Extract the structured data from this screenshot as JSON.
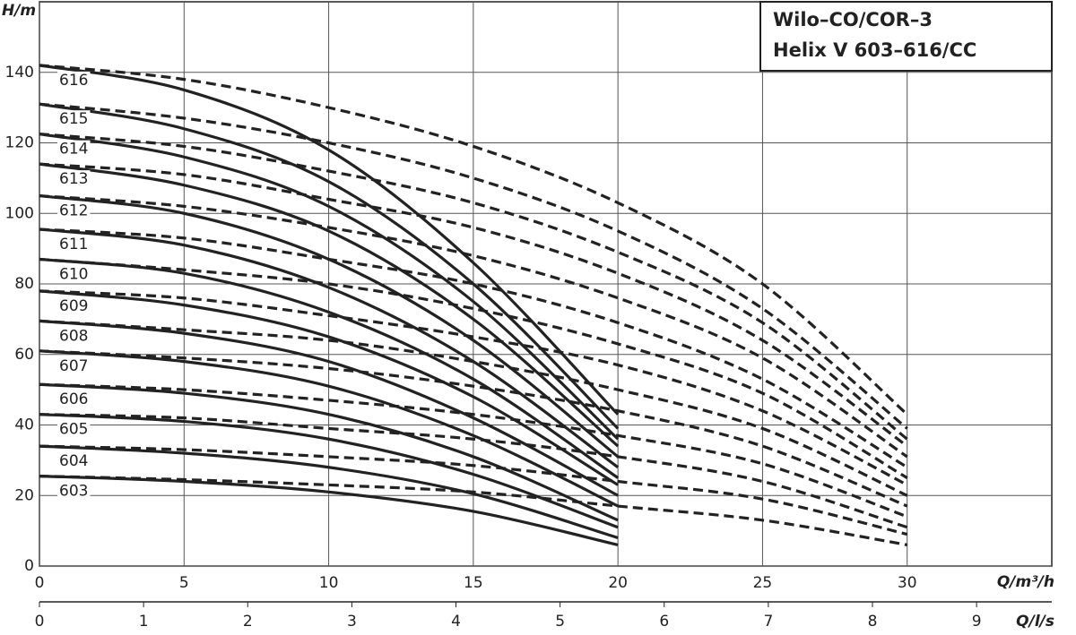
{
  "chart_data": {
    "type": "line",
    "title_lines": [
      "Wilo–CO/COR–3",
      "Helix V 603–616/CC"
    ],
    "x_label": "Q/m³/h",
    "y_label": "H/m",
    "x2_label": "Q/l/s",
    "x": [
      0,
      5,
      10,
      15,
      20,
      25,
      30
    ],
    "xlim": [
      0,
      35
    ],
    "ylim": [
      0,
      160
    ],
    "x2lim": [
      0,
      9.7222
    ],
    "xticks": [
      0,
      5,
      10,
      15,
      20,
      25,
      30
    ],
    "yticks": [
      0,
      20,
      40,
      60,
      80,
      100,
      120,
      140
    ],
    "x2ticks": [
      0,
      1,
      2,
      3,
      4,
      5,
      6,
      7,
      8,
      9
    ],
    "grid": true,
    "color": "#222",
    "series": [
      {
        "name": "603",
        "values": [
          25.5,
          24,
          21,
          15.5,
          6,
          null,
          null
        ],
        "values_dashed": [
          25.5,
          24.5,
          23,
          21,
          17,
          13,
          6
        ]
      },
      {
        "name": "604",
        "values": [
          34,
          32,
          28,
          20.5,
          8,
          null,
          null
        ],
        "values_dashed": [
          34,
          33,
          31,
          28.5,
          24,
          19,
          9
        ]
      },
      {
        "name": "605",
        "values": [
          43,
          41,
          36,
          26,
          11,
          null,
          null
        ],
        "values_dashed": [
          43,
          42,
          39,
          36,
          31,
          24,
          11
        ]
      },
      {
        "name": "606",
        "values": [
          51.5,
          49,
          43,
          31,
          13,
          null,
          null
        ],
        "values_dashed": [
          51.5,
          50,
          47,
          43,
          37,
          29,
          14
        ]
      },
      {
        "name": "607",
        "values": [
          61,
          58,
          51,
          37,
          17,
          null,
          null
        ],
        "values_dashed": [
          61,
          59,
          56,
          51,
          44,
          34,
          17
        ]
      },
      {
        "name": "608",
        "values": [
          69.5,
          66,
          58,
          42,
          20,
          null,
          null
        ],
        "values_dashed": [
          69.5,
          67,
          64,
          58,
          50,
          39,
          20
        ]
      },
      {
        "name": "609",
        "values": [
          78,
          74,
          65,
          48,
          23,
          null,
          null
        ],
        "values_dashed": [
          78,
          76,
          71,
          65,
          57,
          44,
          23
        ]
      },
      {
        "name": "610",
        "values": [
          87,
          83,
          72,
          53,
          25,
          null,
          null
        ],
        "values_dashed": [
          87,
          84,
          80,
          73,
          63,
          49,
          25
        ]
      },
      {
        "name": "611",
        "values": [
          95.5,
          91,
          79,
          58,
          28,
          null,
          null
        ],
        "values_dashed": [
          95.5,
          93,
          87,
          80,
          69,
          53,
          28
        ]
      },
      {
        "name": "612",
        "values": [
          105,
          100,
          87,
          64,
          31,
          null,
          null
        ],
        "values_dashed": [
          105,
          102,
          96,
          88,
          76,
          59,
          31
        ]
      },
      {
        "name": "613",
        "values": [
          114,
          108,
          95,
          70,
          34,
          null,
          null
        ],
        "values_dashed": [
          114,
          111,
          104,
          96,
          83,
          64,
          34
        ]
      },
      {
        "name": "614",
        "values": [
          122.5,
          116,
          102,
          75,
          36,
          null,
          null
        ],
        "values_dashed": [
          122.5,
          119,
          112,
          103,
          89,
          69,
          36
        ]
      },
      {
        "name": "615",
        "values": [
          131,
          124,
          109,
          80,
          39,
          null,
          null
        ],
        "values_dashed": [
          131,
          127,
          120,
          110,
          95,
          73,
          39
        ]
      },
      {
        "name": "616",
        "values": [
          142,
          135,
          118,
          86,
          43,
          null,
          null
        ],
        "values_dashed": [
          142,
          138,
          130,
          119,
          103,
          80,
          43
        ]
      }
    ]
  }
}
